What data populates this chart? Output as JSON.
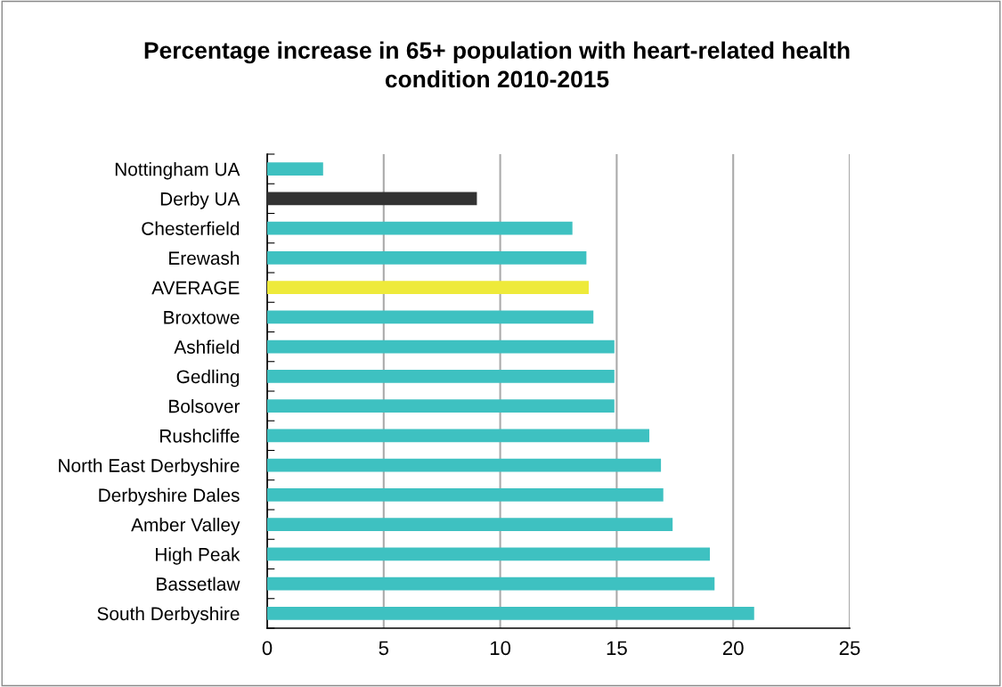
{
  "chart_data": {
    "type": "bar",
    "orientation": "horizontal",
    "title": "Percentage increase in 65+ population with heart-related health\ncondition 2010-2015",
    "categories": [
      "Nottingham UA",
      "Derby UA",
      "Chesterfield",
      "Erewash",
      "AVERAGE",
      "Broxtowe",
      "Ashfield",
      "Gedling",
      "Bolsover",
      "Rushcliffe",
      "North East Derbyshire",
      "Derbyshire Dales",
      "Amber Valley",
      "High Peak",
      "Bassetlaw",
      "South Derbyshire"
    ],
    "values": [
      2.4,
      9.0,
      13.1,
      13.7,
      13.8,
      14.0,
      14.9,
      14.9,
      14.9,
      16.4,
      16.9,
      17.0,
      17.4,
      19.0,
      19.2,
      20.9
    ],
    "colors": [
      "#3ec1c1",
      "#333333",
      "#3ec1c1",
      "#3ec1c1",
      "#eeea3a",
      "#3ec1c1",
      "#3ec1c1",
      "#3ec1c1",
      "#3ec1c1",
      "#3ec1c1",
      "#3ec1c1",
      "#3ec1c1",
      "#3ec1c1",
      "#3ec1c1",
      "#3ec1c1",
      "#3ec1c1"
    ],
    "xlim": [
      0,
      25
    ],
    "xticks": [
      0,
      5,
      10,
      15,
      20,
      25
    ],
    "grid": "x",
    "legend": false
  }
}
